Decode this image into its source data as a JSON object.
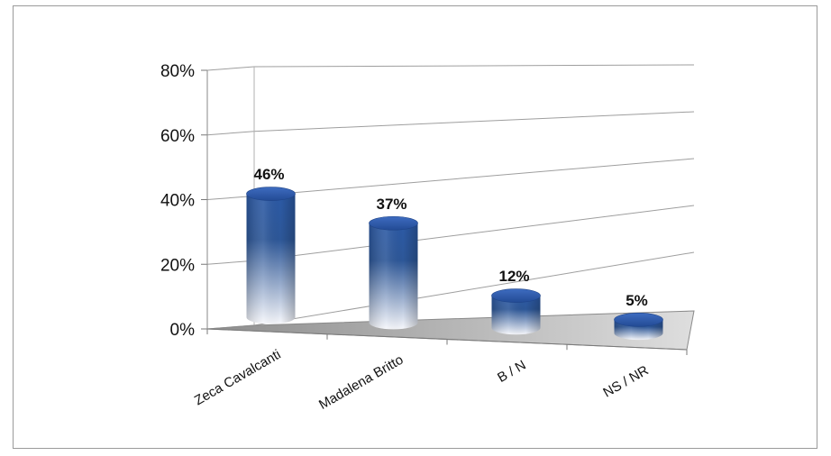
{
  "chart_data": {
    "type": "bar",
    "style": "3d-cylinder",
    "categories": [
      "Zeca Cavalcanti",
      "Madalena Britto",
      "B / N",
      "NS / NR"
    ],
    "values": [
      46,
      37,
      12,
      5
    ],
    "data_labels": [
      "46%",
      "37%",
      "12%",
      "5%"
    ],
    "y_ticks": [
      "0%",
      "20%",
      "40%",
      "60%",
      "80%"
    ],
    "ylim": [
      0,
      80
    ],
    "grid": true,
    "legend": "none",
    "colors": {
      "bar_top": "#2f5597",
      "bar_bottom": "#f4f6fb",
      "floor": "#9a9a9a",
      "grid": "#9e9e9e"
    }
  }
}
